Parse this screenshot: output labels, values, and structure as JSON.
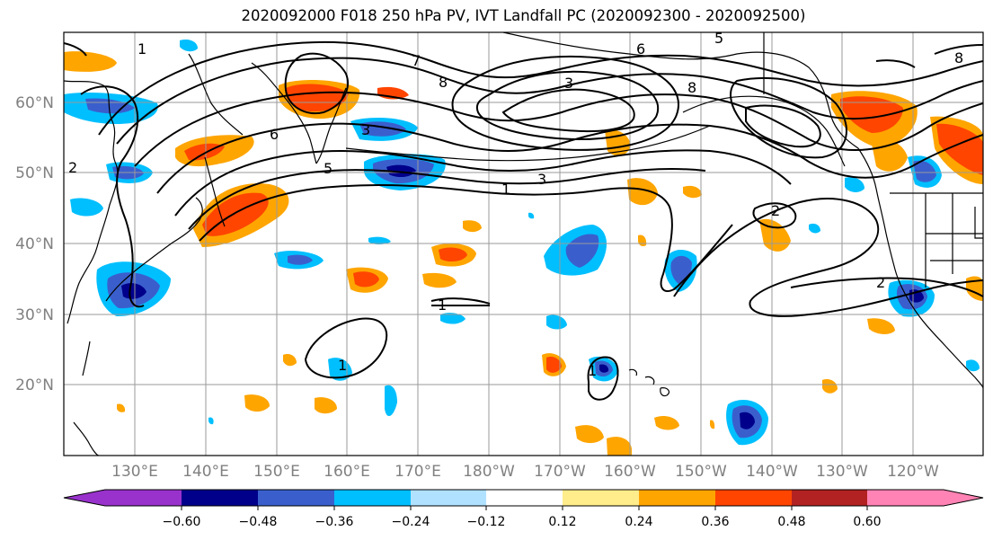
{
  "title": "2020092000 F018 250 hPa PV, IVT Landfall PC (2020092300 - 2020092500)",
  "map": {
    "lat_labels": [
      "60°N",
      "50°N",
      "40°N",
      "30°N",
      "20°N"
    ],
    "lon_labels": [
      "130°E",
      "140°E",
      "150°E",
      "160°E",
      "170°E",
      "180°W",
      "170°W",
      "160°W",
      "150°W",
      "140°W",
      "130°W",
      "120°W"
    ],
    "contour_labels": [
      "7",
      "6",
      "5",
      "5",
      "8",
      "8",
      "6",
      "3",
      "3",
      "1",
      "3",
      "2",
      "2",
      "1",
      "1",
      "1",
      "1",
      "2",
      "8"
    ]
  },
  "colorbar": {
    "colors": [
      "#9932cc",
      "#00008b",
      "#3a5fcd",
      "#00bfff",
      "#b0e2ff",
      "#ffffff",
      "#ffec8b",
      "#ffa500",
      "#ff4500",
      "#b22222",
      "#ff83b4"
    ],
    "tick_labels": [
      "−0.60",
      "−0.48",
      "−0.36",
      "−0.24",
      "−0.12",
      "0.12",
      "0.24",
      "0.36",
      "0.48",
      "0.60"
    ]
  }
}
